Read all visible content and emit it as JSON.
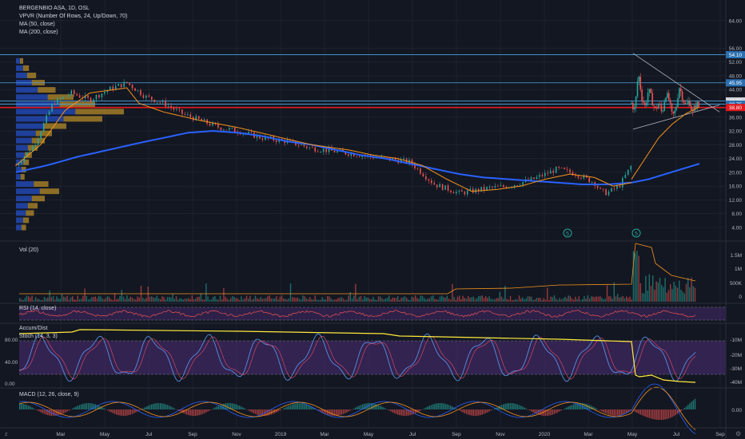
{
  "header": {
    "title": "BERGENBIO ASA, 1D, OSL",
    "indicators": [
      "VPVR (Number Of Rows, 24, Up/Down, 70)",
      "MA (50, close)",
      "MA (200, close)"
    ]
  },
  "panes": {
    "vol_label": "Vol (20)",
    "rsi_label": "RSI (14, close)",
    "accdist_label": "Accum/Dist",
    "stoch_label": "Stoch (14, 3, 3)",
    "macd_label": "MACD (12, 26, close, 9)"
  },
  "colors": {
    "background": "#131722",
    "grid": "#242937",
    "up": "#26a69a",
    "down": "#ef5350",
    "ma50": "#f7931a",
    "ma200": "#2962ff",
    "resistance": "#4aa3df",
    "support": "#e0191f",
    "accdist": "#ffeb3b",
    "stoch_k": "#5b9cf6",
    "stoch_d": "#e74c6f",
    "rsi": "#ef5350",
    "band": "#4a2c6f"
  },
  "badges": [
    {
      "value": "54.10",
      "color": "#2b6fb0"
    },
    {
      "value": "45.95",
      "color": "#2b6fb0"
    },
    {
      "value": "40.70",
      "color": "#d1d4dc"
    },
    {
      "value": "39.75",
      "color": "#2b6fb0"
    },
    {
      "value": "38.80",
      "color": "#e0191f"
    }
  ],
  "event_markers": [
    "5",
    "5"
  ],
  "chart_data": {
    "type": "line",
    "x_ticks": [
      "Mar",
      "May",
      "Jul",
      "Sep",
      "Nov",
      "2019",
      "Mar",
      "May",
      "Jul",
      "Sep",
      "Nov",
      "2020",
      "Mar",
      "May",
      "Jul",
      "Sep"
    ],
    "price_axis": [
      "64.00",
      "56.00",
      "52.00",
      "48.00",
      "44.00",
      "40.00",
      "36.00",
      "32.00",
      "28.00",
      "24.00",
      "20.00",
      "16.00",
      "12.00",
      "8.00",
      "4.00"
    ],
    "volume_axis": [
      "1.5M",
      "1M",
      "500K",
      "0"
    ],
    "accdist_axis": [
      "-10M",
      "-20M",
      "-30M",
      "-40M"
    ],
    "stoch_axis": [
      "80.00",
      "40.00",
      "0.00"
    ],
    "macd_axis": [
      "0.00"
    ],
    "resistance_levels": [
      54.1,
      45.95,
      40.7,
      39.75
    ],
    "support_level": 38.8,
    "price_series": {
      "name": "close",
      "t": [
        0,
        3,
        6,
        9,
        12,
        15,
        18,
        21,
        24,
        27,
        30,
        33,
        36,
        40,
        44,
        48,
        52,
        56,
        60,
        64,
        68,
        72,
        74,
        77,
        80,
        84,
        88,
        91,
        94,
        95,
        96,
        98,
        100
      ],
      "values": [
        22,
        28,
        40,
        43,
        41,
        44,
        46,
        42,
        40,
        37,
        35,
        33,
        32,
        30,
        29,
        27,
        26,
        25,
        24,
        23,
        16.5,
        14,
        14.5,
        15.5,
        16,
        18,
        21,
        19.5,
        17,
        14.5,
        14,
        16,
        22
      ]
    },
    "ma50": {
      "t": [
        0,
        4,
        8,
        12,
        16,
        18,
        20,
        24,
        30,
        36,
        42,
        48,
        54,
        58,
        62,
        66,
        70,
        74,
        78,
        82,
        86,
        90,
        94,
        97,
        100
      ],
      "values": [
        22,
        28,
        38,
        43,
        44,
        44.5,
        40,
        37.5,
        35,
        33,
        30.5,
        28,
        26.5,
        25,
        24,
        22,
        18,
        14.5,
        15,
        16,
        18,
        19.5,
        18.5,
        16,
        17
      ]
    },
    "ma200": {
      "t": [
        0,
        5,
        10,
        15,
        20,
        24,
        28,
        32,
        36,
        40,
        44,
        48,
        52,
        56,
        60,
        64,
        68,
        72,
        76,
        80,
        84,
        88,
        92,
        96,
        100
      ],
      "values": [
        20,
        22,
        24.5,
        26.5,
        28.5,
        30,
        31.5,
        32,
        31.5,
        30.5,
        29,
        28,
        26.5,
        25,
        24,
        22.5,
        21,
        19.5,
        18.5,
        18,
        17.5,
        17,
        16.5,
        16.5,
        17
      ]
    },
    "post_gap_series": {
      "t": [
        0,
        5,
        10,
        15,
        20,
        25,
        30,
        35,
        40,
        45,
        50,
        55,
        60,
        65,
        70,
        75,
        80,
        85,
        90,
        95,
        100
      ],
      "values": [
        40,
        38,
        49,
        42,
        39,
        44,
        41,
        38,
        40,
        37,
        43,
        41,
        36,
        38,
        45,
        42,
        39,
        41,
        37,
        40,
        39
      ]
    },
    "post_gap_ma50": {
      "t": [
        0,
        20,
        40,
        60,
        80,
        100
      ],
      "values": [
        18,
        24,
        30,
        34,
        37,
        39
      ]
    },
    "post_gap_ma200": {
      "t": [
        0,
        25,
        50,
        75,
        100
      ],
      "values": [
        17,
        18,
        19.5,
        21,
        22.5
      ]
    }
  }
}
